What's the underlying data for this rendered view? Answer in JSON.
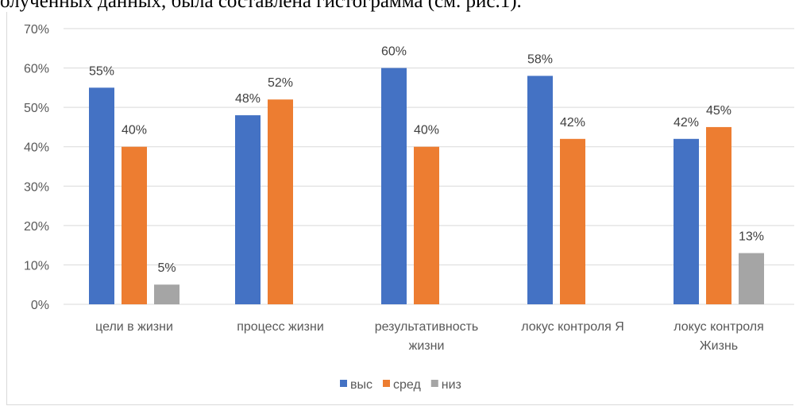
{
  "header_text": "олученных данных, была составлена гистограмма (см. рис.1).",
  "chart_data": {
    "type": "bar",
    "categories": [
      [
        "цели в жизни"
      ],
      [
        "процесс жизни"
      ],
      [
        "результативность",
        "жизни"
      ],
      [
        "локус контроля Я"
      ],
      [
        "локус контроля",
        "Жизнь"
      ]
    ],
    "series": [
      {
        "name": "выс",
        "color": "#4472C4",
        "values": [
          55,
          48,
          60,
          58,
          42
        ]
      },
      {
        "name": "сред",
        "color": "#ED7D31",
        "values": [
          40,
          52,
          40,
          42,
          45
        ]
      },
      {
        "name": "низ",
        "color": "#A5A5A5",
        "values": [
          5,
          null,
          null,
          null,
          13
        ]
      }
    ],
    "ylim": [
      0,
      70
    ],
    "yticks": [
      "0%",
      "10%",
      "20%",
      "30%",
      "40%",
      "50%",
      "60%",
      "70%"
    ],
    "value_suffix": "%",
    "grid": true,
    "legend_position": "bottom"
  }
}
